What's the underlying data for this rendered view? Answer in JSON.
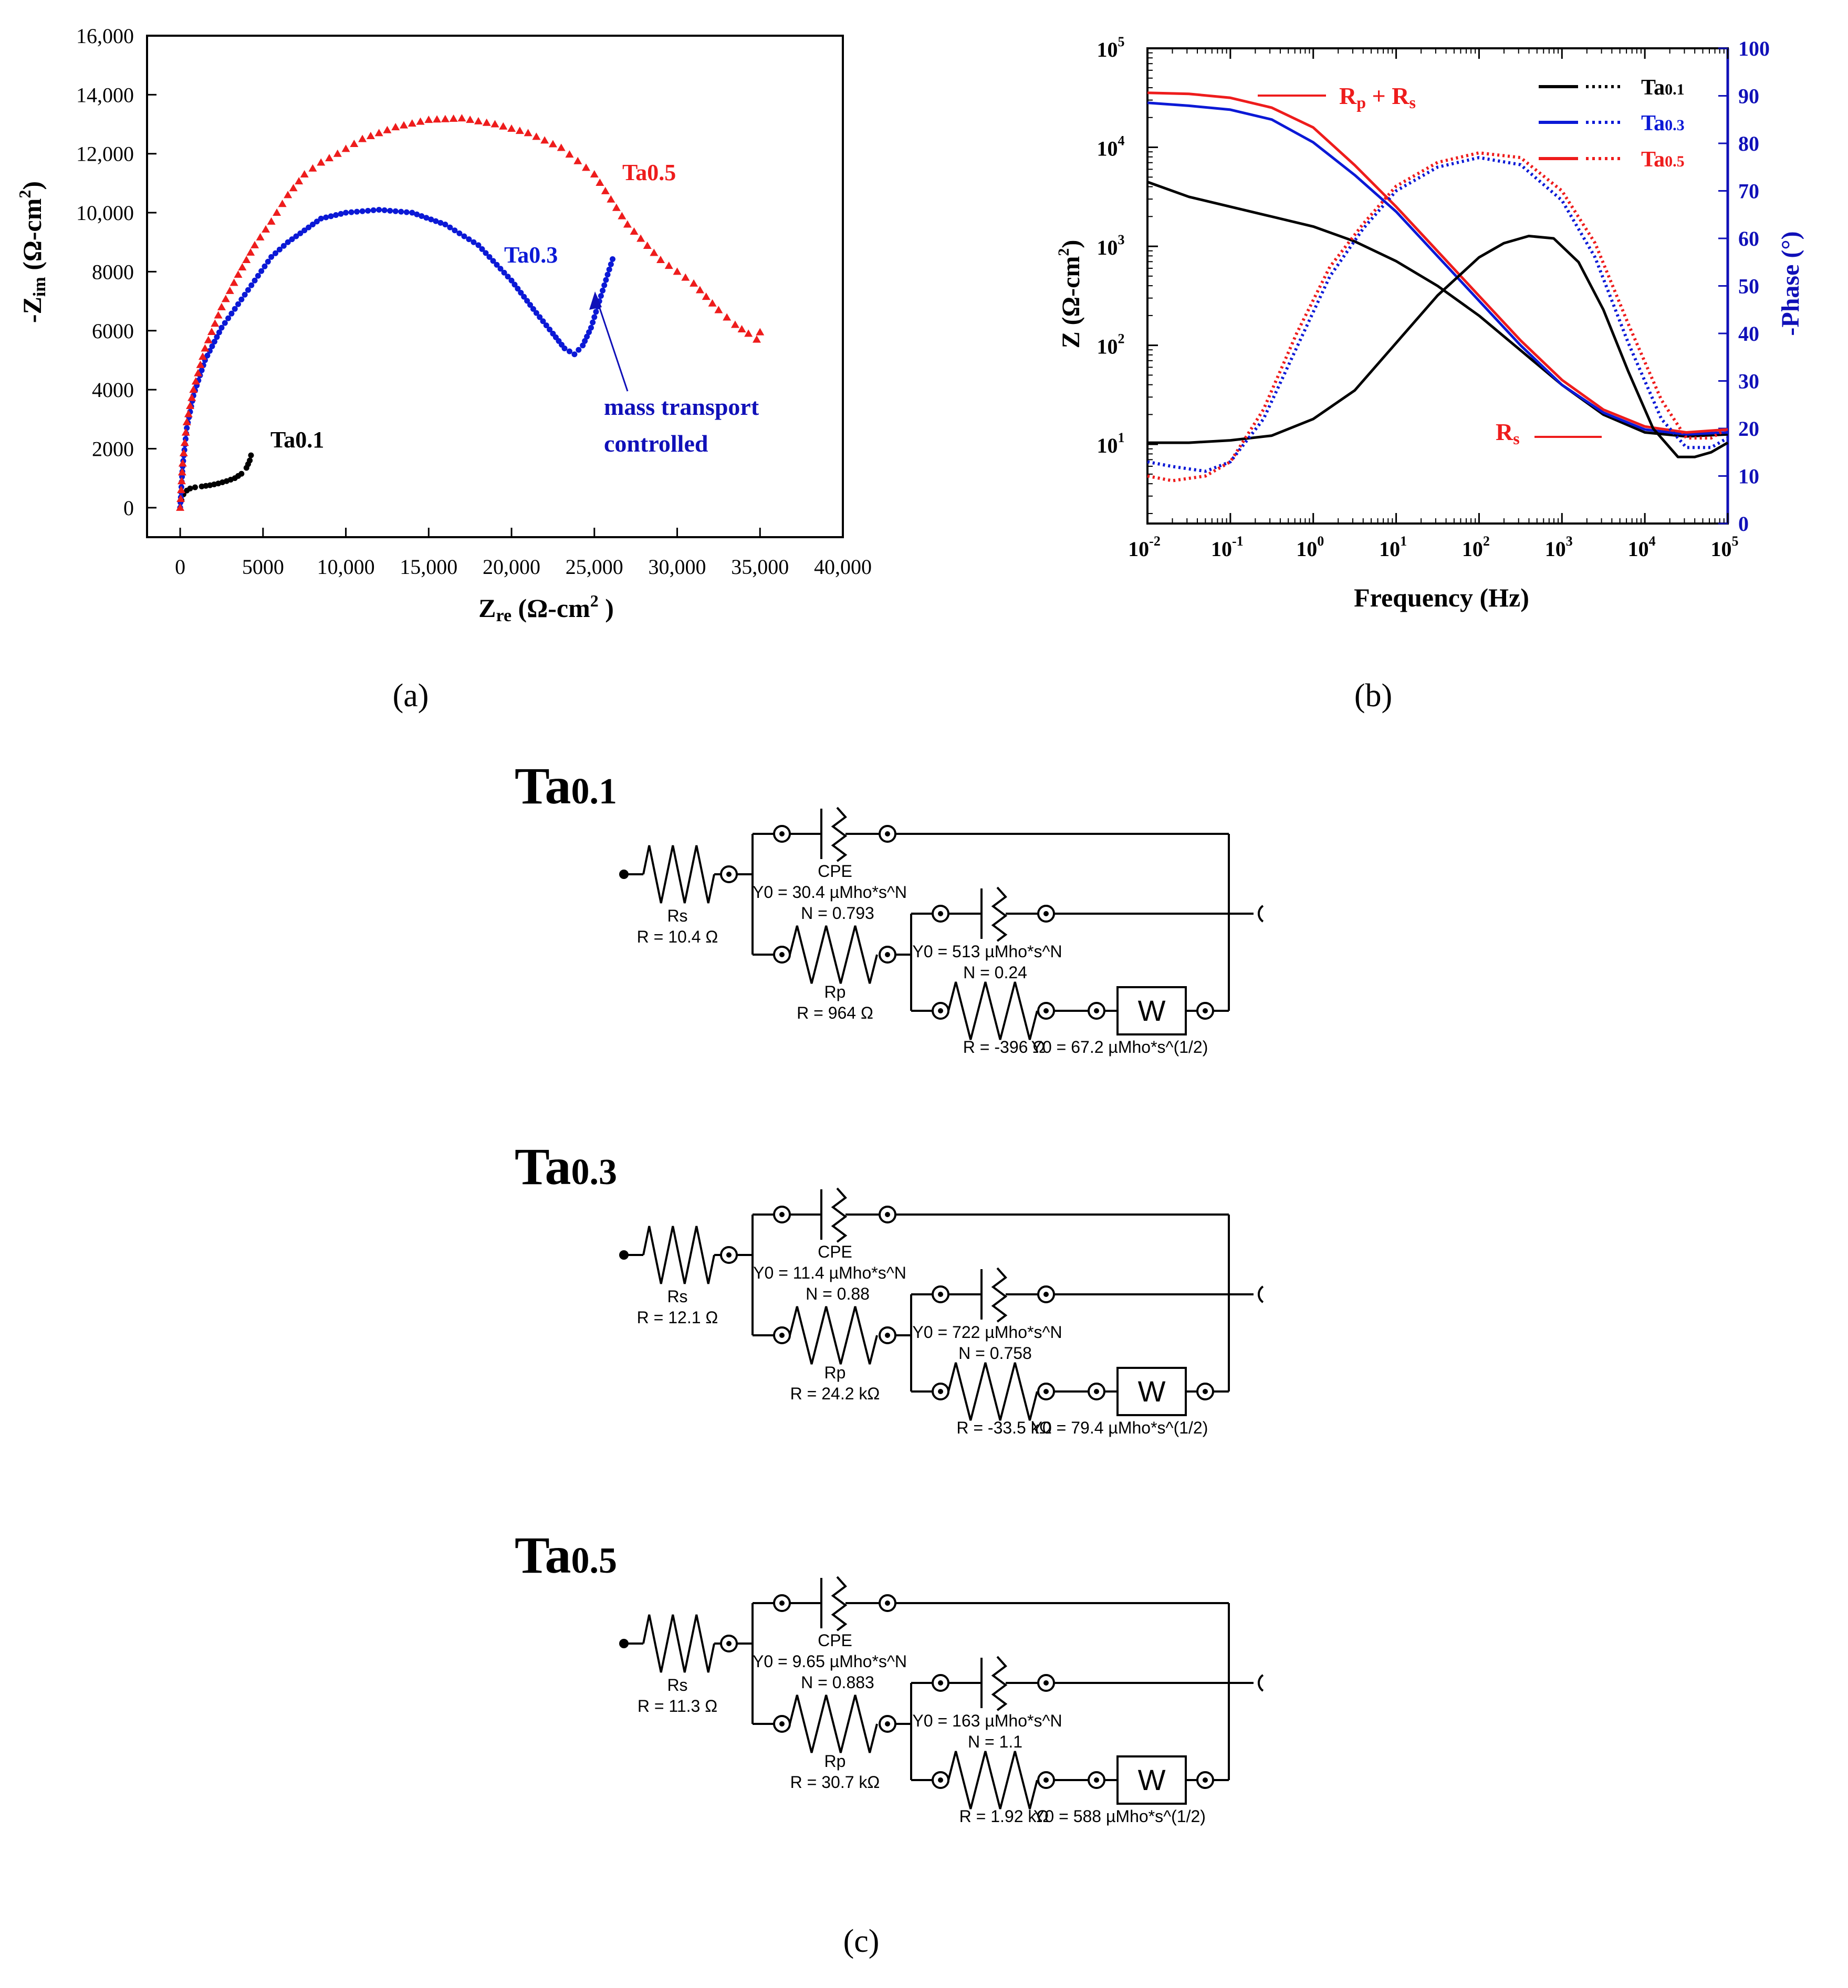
{
  "panel_labels": {
    "a": "(a)",
    "b": "(b)",
    "c": "(c)"
  },
  "colors": {
    "ta01": "#000000",
    "ta03": "#0b19d6",
    "ta05": "#ee1c1c",
    "phase_axis": "#1010b8"
  },
  "chart_data": [
    {
      "type": "scatter",
      "panel": "a",
      "title": "",
      "xlabel_main": "Z",
      "xlabel_sub": "re",
      "xlabel_rest": " (Ω-cm",
      "xlabel_sup": "2",
      "xlabel_end": " )",
      "ylabel_main": "-Z",
      "ylabel_sub": "im",
      "ylabel_rest": " (Ω-cm",
      "ylabel_sup": "2",
      "ylabel_end": ")",
      "xlim": [
        -2000,
        40000
      ],
      "ylim": [
        -1000,
        16000
      ],
      "x_ticks": [
        0,
        5000,
        10000,
        15000,
        20000,
        25000,
        30000,
        35000,
        40000
      ],
      "x_tick_labels": [
        "0",
        "5000",
        "10,000",
        "15,000",
        "20,000",
        "25,000",
        "30,000",
        "35,000",
        "40,000"
      ],
      "y_ticks": [
        0,
        2000,
        4000,
        6000,
        8000,
        10000,
        12000,
        14000,
        16000
      ],
      "y_tick_labels": [
        "0",
        "2000",
        "4000",
        "6000",
        "8000",
        "10,000",
        "12,000",
        "14,000",
        "16,000"
      ],
      "annotations": {
        "ta01": "Ta0.1",
        "ta03": "Ta0.3",
        "ta05": "Ta0.5",
        "arrow_line1": "mass transport",
        "arrow_line2": "controlled"
      },
      "series": [
        {
          "name": "Ta0.1",
          "color": "#000000",
          "marker": "dot",
          "x": [
            0,
            80,
            200,
            400,
            600,
            900,
            1300,
            1800,
            2300,
            2800,
            3300,
            3700,
            4000,
            4200,
            4350
          ],
          "y": [
            0,
            250,
            450,
            580,
            650,
            690,
            720,
            760,
            820,
            900,
            1000,
            1150,
            1350,
            1600,
            1950
          ]
        },
        {
          "name": "Ta0.3",
          "color": "#0b19d6",
          "marker": "dot",
          "x": [
            0,
            150,
            400,
            800,
            1500,
            2500,
            3500,
            4500,
            5500,
            6500,
            7500,
            8500,
            10000,
            12000,
            14000,
            16000,
            18000,
            20000,
            21500,
            22500,
            23200,
            23800,
            24300,
            24800,
            25300,
            25800,
            26200
          ],
          "y": [
            0,
            1400,
            2700,
            3800,
            5000,
            6100,
            6900,
            7700,
            8500,
            9000,
            9400,
            9800,
            10000,
            10100,
            10000,
            9600,
            8900,
            7700,
            6600,
            5900,
            5400,
            5200,
            5500,
            6100,
            7000,
            7900,
            8600
          ]
        },
        {
          "name": "Ta0.5",
          "color": "#ee1c1c",
          "marker": "triangle",
          "x": [
            0,
            150,
            400,
            800,
            1500,
            2500,
            3500,
            4500,
            5500,
            6500,
            7500,
            8500,
            9500,
            11000,
            13000,
            15000,
            17000,
            19000,
            21000,
            23000,
            25000,
            27000,
            29000,
            31000,
            32500,
            33500,
            34300,
            34800,
            35200
          ],
          "y": [
            0,
            1500,
            2900,
            4000,
            5400,
            6800,
            7900,
            8900,
            9700,
            10600,
            11300,
            11700,
            12000,
            12500,
            12900,
            13150,
            13200,
            13000,
            12700,
            12200,
            11300,
            9600,
            8400,
            7600,
            6700,
            6200,
            5900,
            5700,
            6200
          ]
        }
      ]
    },
    {
      "type": "line",
      "panel": "b",
      "title": "",
      "xlabel": "Frequency (Hz)",
      "ylabel_left_main": "Z (Ω-cm",
      "ylabel_left_sup": "2",
      "ylabel_left_end": ")",
      "ylabel_right": "-Phase (°)",
      "x_scale": "log",
      "y_left_scale": "log",
      "xlim_log10": [
        -2,
        5
      ],
      "ylim_left_log10": [
        0.2,
        5
      ],
      "ylim_right": [
        0,
        100
      ],
      "x_tick_exponents": [
        "-2",
        "-1",
        "0",
        "1",
        "2",
        "3",
        "4",
        "5"
      ],
      "y_left_tick_exponents": [
        "1",
        "2",
        "3",
        "4",
        "5"
      ],
      "y_right_ticks": [
        "0",
        "10",
        "20",
        "30",
        "40",
        "50",
        "60",
        "70",
        "80",
        "90",
        "100"
      ],
      "annotations": {
        "rp_rs": "R",
        "rp_sub": "p",
        "rp_rest": " + R",
        "rp_sub2": "s",
        "rs": "R",
        "rs_sub": "s"
      },
      "legend": {
        "position": "top-right",
        "entries": [
          {
            "main": "Ta",
            "sub": "0.1",
            "color": "#000000"
          },
          {
            "main": "Ta",
            "sub": "0.3",
            "color": "#0b19d6"
          },
          {
            "main": "Ta",
            "sub": "0.5",
            "color": "#ee1c1c"
          }
        ]
      },
      "series": [
        {
          "name": "Ta0.1 |Z|",
          "axis": "left",
          "color": "#000000",
          "style": "solid",
          "log10f": [
            -2,
            -1.5,
            -1,
            -0.5,
            0,
            0.5,
            1,
            1.5,
            2,
            2.5,
            3,
            3.5,
            4,
            4.5,
            5
          ],
          "log10z": [
            3.65,
            3.5,
            3.4,
            3.3,
            3.2,
            3.05,
            2.85,
            2.6,
            2.3,
            1.95,
            1.6,
            1.3,
            1.12,
            1.08,
            1.1
          ]
        },
        {
          "name": "Ta0.3 |Z|",
          "axis": "left",
          "color": "#0b19d6",
          "style": "solid",
          "log10f": [
            -2,
            -1.5,
            -1,
            -0.5,
            0,
            0.5,
            1,
            1.5,
            2,
            2.5,
            3,
            3.5,
            4,
            4.5,
            5
          ],
          "log10z": [
            4.45,
            4.42,
            4.38,
            4.28,
            4.05,
            3.72,
            3.35,
            2.9,
            2.45,
            2.0,
            1.6,
            1.32,
            1.15,
            1.1,
            1.12
          ]
        },
        {
          "name": "Ta0.5 |Z|",
          "axis": "left",
          "color": "#ee1c1c",
          "style": "solid",
          "log10f": [
            -2,
            -1.5,
            -1,
            -0.5,
            0,
            0.5,
            1,
            1.5,
            2,
            2.5,
            3,
            3.5,
            4,
            4.5,
            5
          ],
          "log10z": [
            4.55,
            4.54,
            4.5,
            4.4,
            4.2,
            3.82,
            3.4,
            2.95,
            2.5,
            2.05,
            1.65,
            1.35,
            1.18,
            1.12,
            1.15
          ]
        },
        {
          "name": "Ta0.1 phase",
          "axis": "right",
          "color": "#000000",
          "style": "solid",
          "log10f": [
            -2,
            -1.5,
            -1,
            -0.5,
            0,
            0.5,
            1,
            1.5,
            2,
            2.3,
            2.6,
            2.9,
            3.2,
            3.5,
            3.8,
            4.1,
            4.4,
            4.6,
            4.8,
            5
          ],
          "phase": [
            17,
            17,
            17.5,
            18.5,
            22,
            28,
            38,
            48,
            56,
            59,
            60.5,
            60,
            55,
            45,
            32,
            20,
            14,
            14,
            15,
            17
          ]
        },
        {
          "name": "Ta0.3 phase",
          "axis": "right",
          "color": "#0b19d6",
          "style": "dotted",
          "log10f": [
            -2,
            -1.7,
            -1.3,
            -1,
            -0.6,
            -0.2,
            0.2,
            0.6,
            1,
            1.5,
            2,
            2.5,
            3,
            3.4,
            3.8,
            4.2,
            4.5,
            4.8,
            5
          ],
          "phase": [
            13,
            12,
            11,
            13,
            22,
            37,
            52,
            62,
            70,
            75,
            77,
            75.5,
            68,
            56,
            38,
            22,
            16,
            16,
            18
          ]
        },
        {
          "name": "Ta0.5 phase",
          "axis": "right",
          "color": "#ee1c1c",
          "style": "dotted",
          "log10f": [
            -2,
            -1.7,
            -1.3,
            -1,
            -0.6,
            -0.2,
            0.2,
            0.6,
            1,
            1.5,
            2,
            2.5,
            3,
            3.4,
            3.8,
            4.2,
            4.5,
            4.8,
            5
          ],
          "phase": [
            10,
            9,
            10,
            13,
            24,
            40,
            54,
            63,
            71,
            76,
            78,
            77,
            70,
            59,
            42,
            26,
            18,
            18,
            20
          ]
        }
      ]
    }
  ],
  "circuits": [
    {
      "title_main": "Ta",
      "title_sub": "0.1",
      "rs_name": "Rs",
      "rs_value": "R = 10.4 Ω",
      "cpe1_name": "CPE",
      "cpe1_y0": "Y0 = 30.4 µMho*s^N",
      "cpe1_n": "N = 0.793",
      "rp_name": "Rp",
      "rp_value": "R = 964 Ω",
      "cpe2_y0": "Y0 = 513 µMho*s^N",
      "cpe2_n": "N = 0.24",
      "r3_value": "R = -396 Ω",
      "w_y0": "Y0 = 67.2 µMho*s^(1/2)",
      "w_label": "W"
    },
    {
      "title_main": "Ta",
      "title_sub": "0.3",
      "rs_name": "Rs",
      "rs_value": "R = 12.1 Ω",
      "cpe1_name": "CPE",
      "cpe1_y0": "Y0 = 11.4 µMho*s^N",
      "cpe1_n": "N = 0.88",
      "rp_name": "Rp",
      "rp_value": "R = 24.2 kΩ",
      "cpe2_y0": "Y0 = 722 µMho*s^N",
      "cpe2_n": "N = 0.758",
      "r3_value": "R = -33.5 kΩ",
      "w_y0": "Y0 = 79.4 µMho*s^(1/2)",
      "w_label": "W"
    },
    {
      "title_main": "Ta",
      "title_sub": "0.5",
      "rs_name": "Rs",
      "rs_value": "R = 11.3 Ω",
      "cpe1_name": "CPE",
      "cpe1_y0": "Y0 = 9.65 µMho*s^N",
      "cpe1_n": "N = 0.883",
      "rp_name": "Rp",
      "rp_value": "R = 30.7 kΩ",
      "cpe2_y0": "Y0 = 163 µMho*s^N",
      "cpe2_n": "N = 1.1",
      "r3_value": "R = 1.92 kΩ",
      "w_y0": "Y0 = 588 µMho*s^(1/2)",
      "w_label": "W"
    }
  ]
}
